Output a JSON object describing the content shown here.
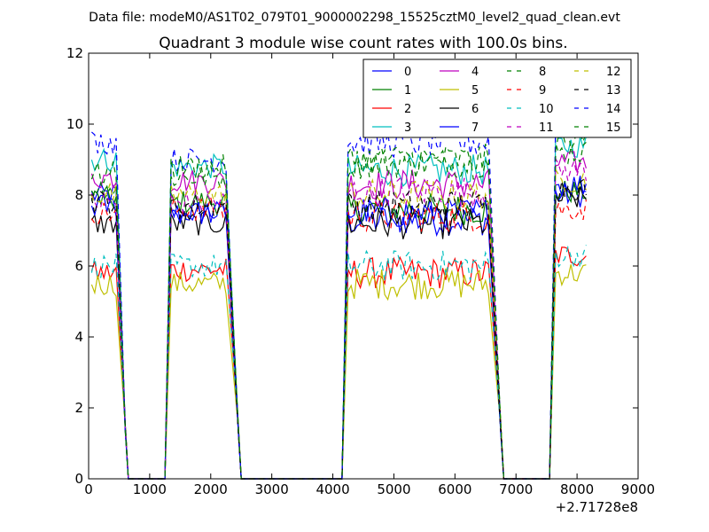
{
  "suptitle": "Data file: modeM0/AS1T02_079T01_9000002298_15525cztM0_level2_quad_clean.evt",
  "chart_data": {
    "type": "line",
    "title": "Quadrant 3 module wise count rates with 100.0s bins.",
    "xlabel": "",
    "ylabel": "",
    "x_offset_label": "+2.71728e8",
    "xlim": [
      0,
      9000
    ],
    "ylim": [
      0,
      12
    ],
    "x_ticks": [
      0,
      1000,
      2000,
      3000,
      4000,
      5000,
      6000,
      7000,
      8000,
      9000
    ],
    "y_ticks": [
      0,
      2,
      4,
      6,
      8,
      10,
      12
    ],
    "grid": false,
    "legend_position": "top-right",
    "legend_columns": 4,
    "segments": [
      {
        "x_start": 50,
        "x_end": 450,
        "drop_to": 600,
        "leading_edge": null
      },
      {
        "x_start": 1350,
        "x_end": 2250,
        "drop_to": 2450,
        "leading_edge": 1250
      },
      {
        "x_start": 4250,
        "x_end": 6550,
        "drop_to": 6750,
        "leading_edge": 4150
      },
      {
        "x_start": 7650,
        "x_end": 8150,
        "drop_to": null,
        "leading_edge": 7550
      }
    ],
    "zero_ranges": [
      [
        650,
        1150
      ],
      [
        2550,
        4150
      ],
      [
        6850,
        7450
      ]
    ],
    "series": [
      {
        "name": "0",
        "color": "#0000ff",
        "dash": "solid",
        "levels": [
          8.0,
          7.5,
          7.3,
          8.0
        ]
      },
      {
        "name": "1",
        "color": "#008000",
        "dash": "solid",
        "levels": [
          7.9,
          7.8,
          7.6,
          8.1
        ]
      },
      {
        "name": "2",
        "color": "#ff0000",
        "dash": "solid",
        "levels": [
          5.8,
          5.9,
          5.8,
          6.3
        ]
      },
      {
        "name": "3",
        "color": "#00bfbf",
        "dash": "solid",
        "levels": [
          9.0,
          8.8,
          8.7,
          9.4
        ]
      },
      {
        "name": "4",
        "color": "#bf00bf",
        "dash": "solid",
        "levels": [
          8.5,
          8.4,
          8.3,
          8.9
        ]
      },
      {
        "name": "5",
        "color": "#bfbf00",
        "dash": "solid",
        "levels": [
          5.5,
          5.5,
          5.5,
          5.8
        ]
      },
      {
        "name": "6",
        "color": "#000000",
        "dash": "solid",
        "levels": [
          7.2,
          7.2,
          7.2,
          7.9
        ]
      },
      {
        "name": "7",
        "color": "#0000ff",
        "dash": "solid",
        "levels": [
          7.7,
          7.5,
          7.5,
          8.3
        ]
      },
      {
        "name": "8",
        "color": "#008000",
        "dash": "dashed",
        "levels": [
          8.2,
          8.5,
          8.9,
          9.2
        ]
      },
      {
        "name": "9",
        "color": "#ff0000",
        "dash": "dashed",
        "levels": [
          7.5,
          7.6,
          7.4,
          7.6
        ]
      },
      {
        "name": "10",
        "color": "#00bfbf",
        "dash": "dashed",
        "levels": [
          6.0,
          6.0,
          6.0,
          6.3
        ]
      },
      {
        "name": "11",
        "color": "#bf00bf",
        "dash": "dashed",
        "levels": [
          7.8,
          7.8,
          8.1,
          8.7
        ]
      },
      {
        "name": "12",
        "color": "#bfbf00",
        "dash": "dashed",
        "levels": [
          8.0,
          8.0,
          8.0,
          8.4
        ]
      },
      {
        "name": "13",
        "color": "#000000",
        "dash": "dashed",
        "levels": [
          7.8,
          7.7,
          7.7,
          8.2
        ]
      },
      {
        "name": "14",
        "color": "#0000ff",
        "dash": "dashed",
        "levels": [
          9.5,
          9.0,
          9.5,
          10.0
        ]
      },
      {
        "name": "15",
        "color": "#008000",
        "dash": "dashed",
        "levels": [
          8.6,
          8.8,
          9.0,
          9.6
        ]
      }
    ]
  }
}
